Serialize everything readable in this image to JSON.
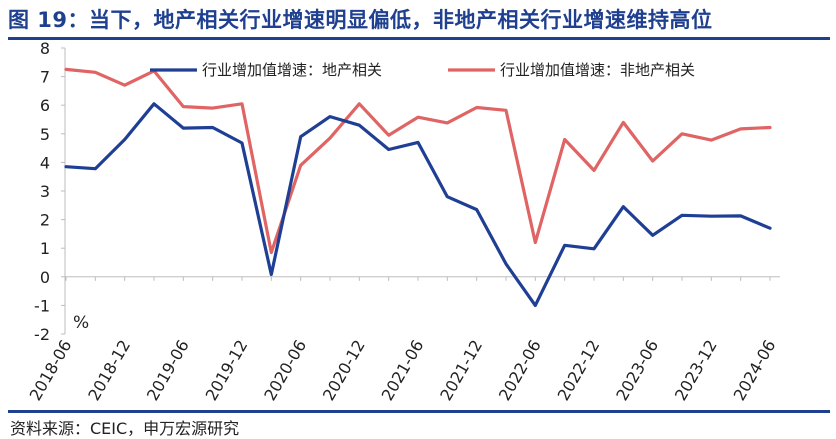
{
  "title": "图 19：当下，地产相关行业增速明显偏低，非地产相关行业增速维持高位",
  "source": "资料来源：CEIC，申万宏源研究",
  "chart_data": {
    "type": "line",
    "unit_label": "%",
    "ylim": [
      -2,
      8
    ],
    "yticks": [
      -2,
      -1,
      0,
      1,
      2,
      3,
      4,
      5,
      6,
      7,
      8
    ],
    "x": [
      "2018-06",
      "2018-09",
      "2018-12",
      "2019-03",
      "2019-06",
      "2019-09",
      "2019-12",
      "2020-03",
      "2020-06",
      "2020-09",
      "2020-12",
      "2021-03",
      "2021-06",
      "2021-09",
      "2021-12",
      "2022-03",
      "2022-06",
      "2022-09",
      "2022-12",
      "2023-03",
      "2023-06",
      "2023-09",
      "2023-12",
      "2024-03",
      "2024-06"
    ],
    "xtick_labels": [
      "2018-06",
      "2018-12",
      "2019-06",
      "2019-12",
      "2020-06",
      "2020-12",
      "2021-06",
      "2021-12",
      "2022-06",
      "2022-12",
      "2023-06",
      "2023-12",
      "2024-06"
    ],
    "legend_position": "top",
    "grid": false,
    "series": [
      {
        "name": "行业增加值增速：地产相关",
        "color": "#1f3f94",
        "values": [
          3.85,
          3.78,
          4.8,
          6.05,
          5.2,
          5.22,
          4.68,
          0.08,
          4.9,
          5.6,
          5.3,
          4.45,
          4.7,
          2.8,
          2.35,
          0.45,
          -1.0,
          1.1,
          0.98,
          2.45,
          1.45,
          2.15,
          2.12,
          2.13,
          1.7
        ]
      },
      {
        "name": "行业增加值增速：非地产相关",
        "color": "#e06464",
        "values": [
          7.25,
          7.15,
          6.7,
          7.2,
          5.95,
          5.9,
          6.05,
          0.85,
          3.9,
          4.85,
          6.05,
          4.95,
          5.58,
          5.38,
          5.92,
          5.82,
          1.2,
          4.8,
          3.72,
          5.4,
          4.05,
          5.0,
          4.78,
          5.17,
          5.22
        ]
      }
    ]
  }
}
